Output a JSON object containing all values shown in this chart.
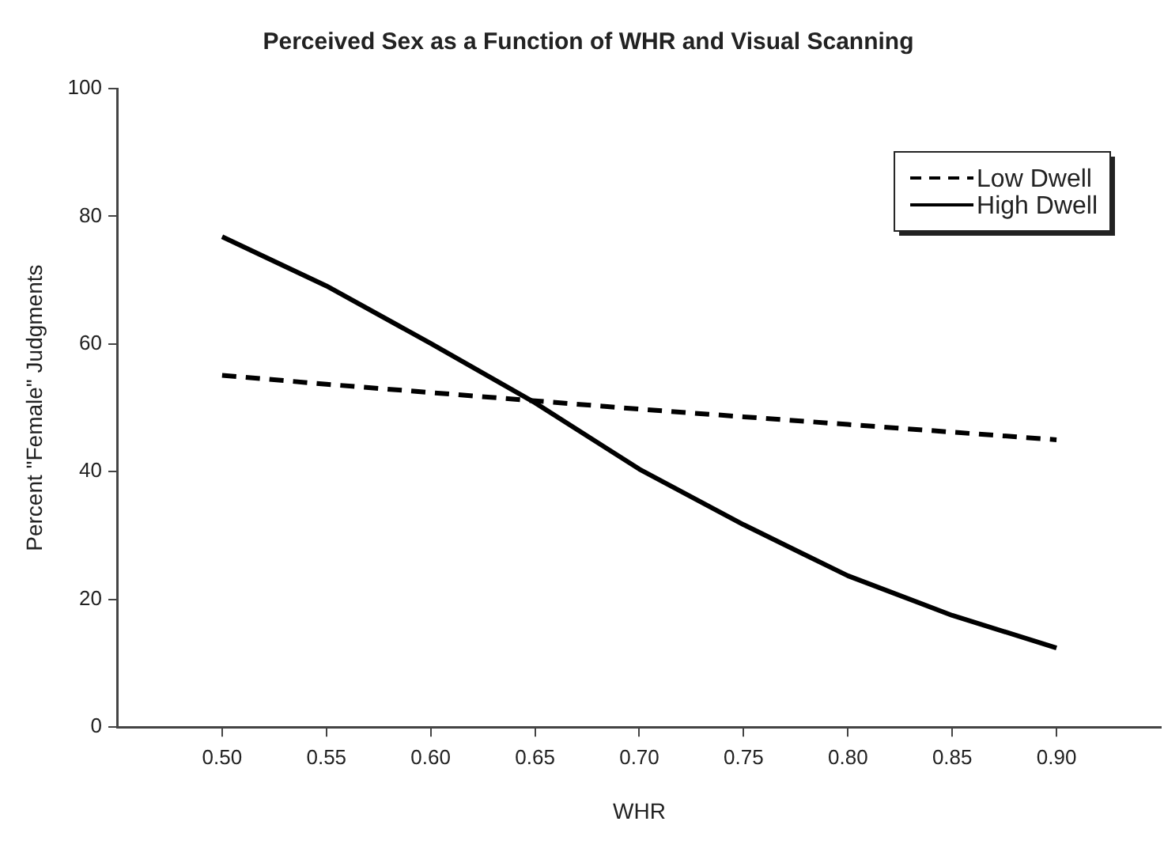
{
  "chart_data": {
    "type": "line",
    "title": "Perceived Sex as a Function of WHR and Visual Scanning",
    "xlabel": "WHR",
    "ylabel": "Percent \"Female\" Judgments",
    "x": [
      0.5,
      0.55,
      0.6,
      0.65,
      0.7,
      0.75,
      0.8,
      0.85,
      0.9
    ],
    "series": [
      {
        "name": "Low Dwell",
        "color": "#000000",
        "line_style": "dashed",
        "values": [
          55.1,
          53.7,
          52.4,
          51.1,
          49.8,
          48.6,
          47.4,
          46.2,
          45.0
        ]
      },
      {
        "name": "High Dwell",
        "color": "#000000",
        "line_style": "solid",
        "values": [
          76.8,
          69.1,
          60.1,
          50.8,
          40.4,
          31.7,
          23.7,
          17.5,
          12.4
        ]
      }
    ],
    "xlim": [
      0.45,
      0.95
    ],
    "xticks": [
      {
        "value": 0.5,
        "label": "0.50"
      },
      {
        "value": 0.55,
        "label": "0.55"
      },
      {
        "value": 0.6,
        "label": "0.60"
      },
      {
        "value": 0.65,
        "label": "0.65"
      },
      {
        "value": 0.7,
        "label": "0.70"
      },
      {
        "value": 0.75,
        "label": "0.75"
      },
      {
        "value": 0.8,
        "label": "0.80"
      },
      {
        "value": 0.85,
        "label": "0.85"
      },
      {
        "value": 0.9,
        "label": "0.90"
      }
    ],
    "ylim": [
      0,
      100
    ],
    "yticks": [
      0,
      20,
      40,
      60,
      80,
      100
    ],
    "grid": false,
    "legend": "top right",
    "marker": "none"
  }
}
